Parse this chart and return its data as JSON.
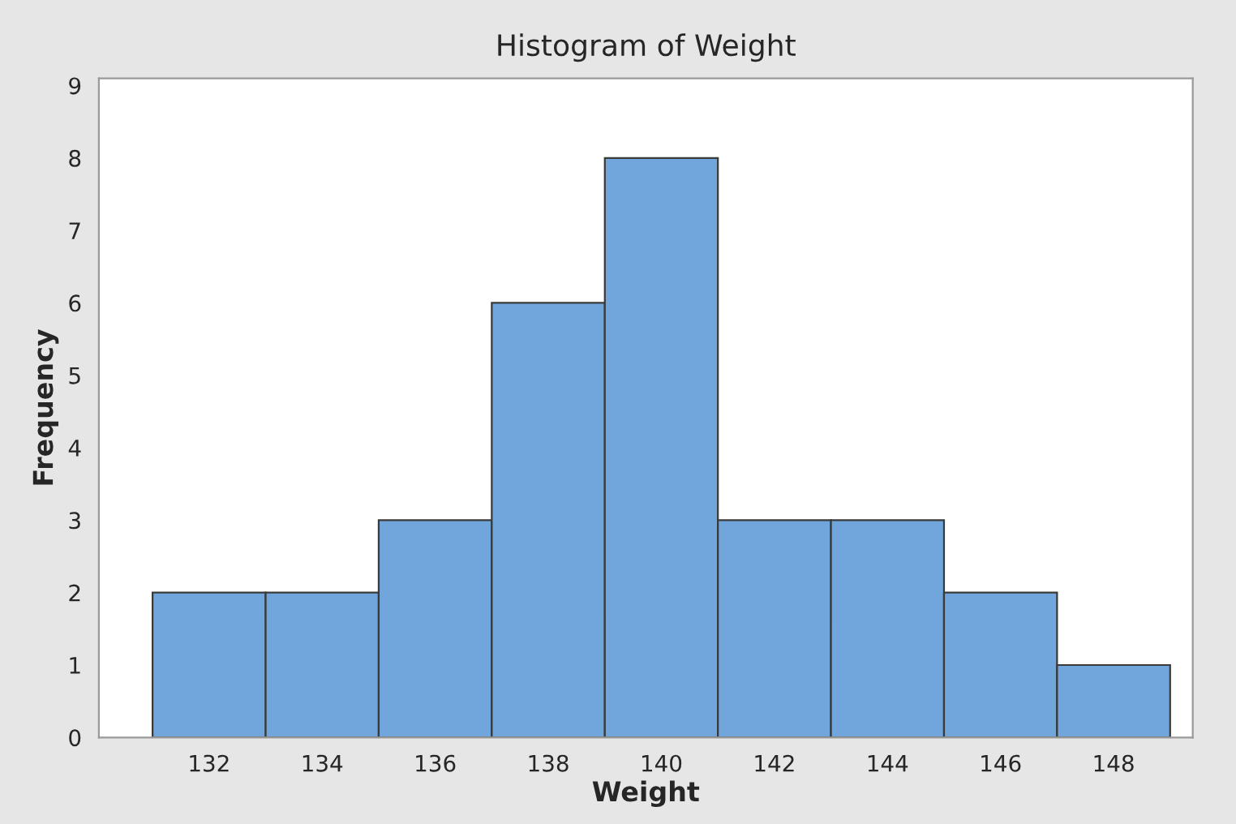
{
  "chart_data": {
    "type": "histogram",
    "title": "Histogram of Weight",
    "xlabel": "Weight",
    "ylabel": "Frequency",
    "bins": [
      131,
      133,
      135,
      137,
      139,
      141,
      143,
      145,
      147,
      149
    ],
    "values": [
      2,
      2,
      3,
      6,
      8,
      3,
      3,
      2,
      1
    ],
    "color": "#71a6dc",
    "xlim": [
      130.05,
      149.4
    ],
    "xticks": [
      132,
      134,
      136,
      138,
      140,
      142,
      144,
      146,
      148
    ],
    "ylim": [
      0,
      9.1
    ],
    "yticks": [
      0,
      1,
      2,
      3,
      4,
      5,
      6,
      7,
      8,
      9
    ],
    "grid": false,
    "legend": false
  }
}
